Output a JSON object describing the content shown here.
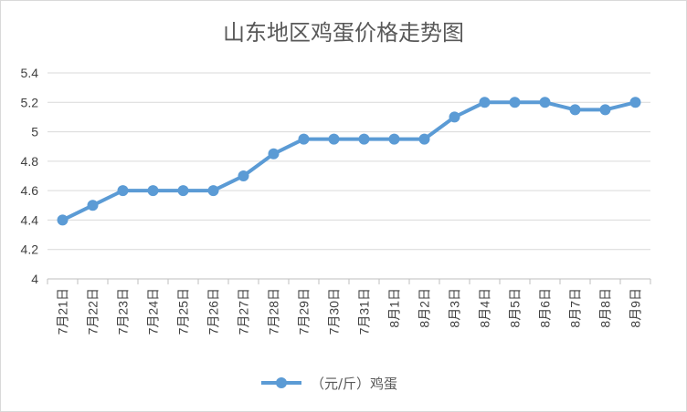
{
  "chart_data": {
    "type": "line",
    "title": "山东地区鸡蛋价格走势图",
    "categories": [
      "7月21日",
      "7月22日",
      "7月23日",
      "7月24日",
      "7月25日",
      "7月26日",
      "7月27日",
      "7月28日",
      "7月29日",
      "7月30日",
      "7月31日",
      "8月1日",
      "8月2日",
      "8月3日",
      "8月4日",
      "8月5日",
      "8月6日",
      "8月7日",
      "8月8日",
      "8月9日"
    ],
    "series": [
      {
        "name": "（元/斤）鸡蛋",
        "color": "#5b9bd5",
        "values": [
          4.4,
          4.5,
          4.6,
          4.6,
          4.6,
          4.6,
          4.7,
          4.85,
          4.95,
          4.95,
          4.95,
          4.95,
          4.95,
          5.1,
          5.2,
          5.2,
          5.2,
          5.15,
          5.15,
          5.2
        ]
      }
    ],
    "ylim": [
      4,
      5.4
    ],
    "yticks": [
      "4",
      "4.2",
      "4.4",
      "4.6",
      "4.8",
      "5",
      "5.2",
      "5.4"
    ],
    "grid": true,
    "legend_position": "bottom"
  }
}
